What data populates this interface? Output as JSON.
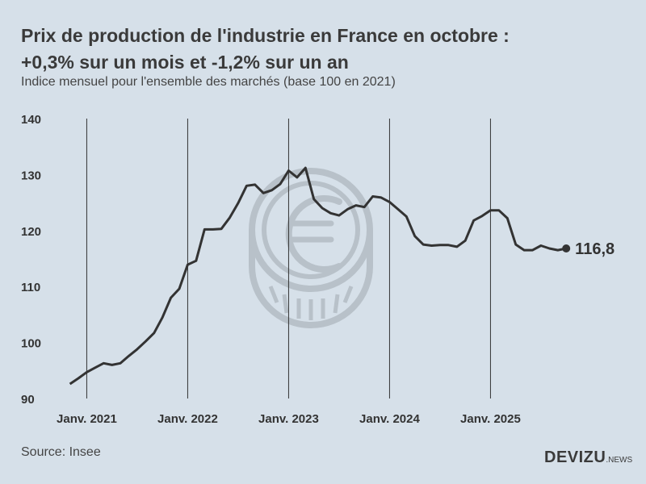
{
  "header": {
    "title_line1": "Prix de production de l'industrie en France en octobre :",
    "title_line2": "+0,3% sur un mois et -1,2% sur un an",
    "subtitle": "Indice mensuel pour l'ensemble des marchés (base 100 en 2021)"
  },
  "footer": {
    "source": "Source: Insee",
    "logo_main": "DEVIZU",
    "logo_suffix": ".NEWS"
  },
  "watermark_icon": "euro-coin-icon",
  "chart_data": {
    "type": "line",
    "title": "Prix de production de l'industrie en France en octobre : +0,3% sur un mois et -1,2% sur un an",
    "subtitle": "Indice mensuel pour l'ensemble des marchés (base 100 en 2021)",
    "ylim": [
      90,
      140
    ],
    "yticks": [
      "90",
      "100",
      "110",
      "120",
      "130",
      "140"
    ],
    "xticks": [
      "Janv. 2021",
      "Janv. 2022",
      "Janv. 2023",
      "Janv. 2024",
      "Janv. 2025"
    ],
    "grid": "vertical lines at each January",
    "line_color": "#333333",
    "end_label": "116,8",
    "x_start": "2020-11",
    "x_end": "2025-10",
    "values": [
      92.6,
      93.6,
      94.7,
      95.5,
      96.3,
      96.0,
      96.3,
      97.6,
      98.8,
      100.2,
      101.7,
      104.5,
      108.0,
      109.6,
      113.9,
      114.6,
      120.2,
      120.2,
      120.3,
      122.3,
      124.9,
      128.0,
      128.2,
      126.7,
      127.2,
      128.3,
      130.7,
      129.5,
      131.2,
      125.6,
      124.0,
      123.1,
      122.7,
      123.8,
      124.5,
      124.2,
      126.1,
      125.9,
      125.1,
      123.8,
      122.5,
      119.0,
      117.5,
      117.3,
      117.4,
      117.4,
      117.1,
      118.2,
      121.8,
      122.6,
      123.6,
      123.6,
      122.2,
      117.5,
      116.5,
      116.5,
      117.3,
      116.8,
      116.5,
      116.8
    ]
  }
}
